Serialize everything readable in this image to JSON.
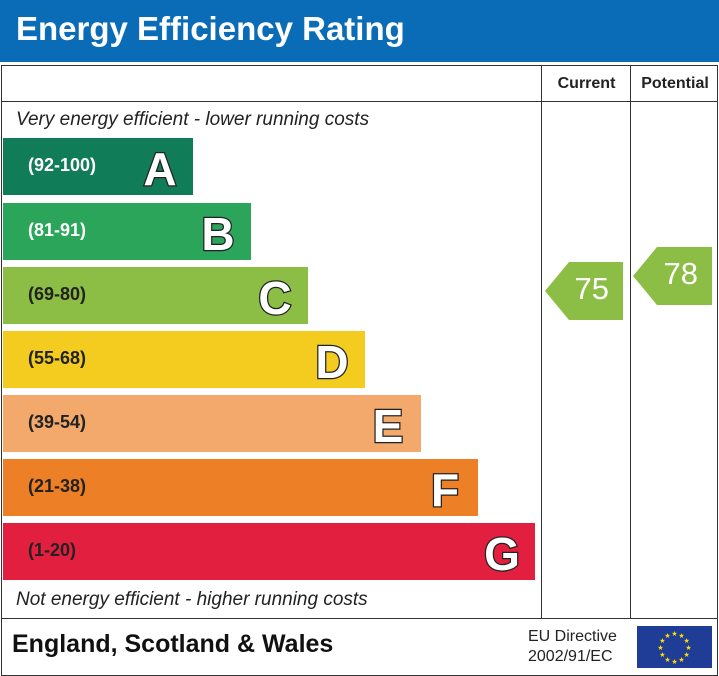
{
  "header": {
    "title": "Energy Efficiency Rating"
  },
  "columns": {
    "current": "Current",
    "potential": "Potential"
  },
  "notes": {
    "top": "Very energy efficient - lower running costs",
    "bottom": "Not energy efficient - higher running costs"
  },
  "footer": {
    "region": "England, Scotland & Wales",
    "directive_line1": "EU Directive",
    "directive_line2": "2002/91/EC"
  },
  "chart_data": {
    "type": "bar",
    "title": "Energy Efficiency Rating",
    "bands": [
      {
        "letter": "A",
        "range": "(92-100)",
        "color": "#107c58",
        "label_color": "#ffffff"
      },
      {
        "letter": "B",
        "range": "(81-91)",
        "color": "#2aa55a",
        "label_color": "#ffffff"
      },
      {
        "letter": "C",
        "range": "(69-80)",
        "color": "#8cbd44",
        "label_color": "#222222"
      },
      {
        "letter": "D",
        "range": "(55-68)",
        "color": "#f4cc1f",
        "label_color": "#222222"
      },
      {
        "letter": "E",
        "range": "(39-54)",
        "color": "#f2a96b",
        "label_color": "#222222"
      },
      {
        "letter": "F",
        "range": "(21-38)",
        "color": "#ed8027",
        "label_color": "#222222"
      },
      {
        "letter": "G",
        "range": "(1-20)",
        "color": "#e21f3e",
        "label_color": "#222222"
      }
    ],
    "current": {
      "value": "75",
      "band": "C",
      "color": "#8cbd44"
    },
    "potential": {
      "value": "78",
      "band": "C",
      "color": "#8cbd44"
    }
  }
}
